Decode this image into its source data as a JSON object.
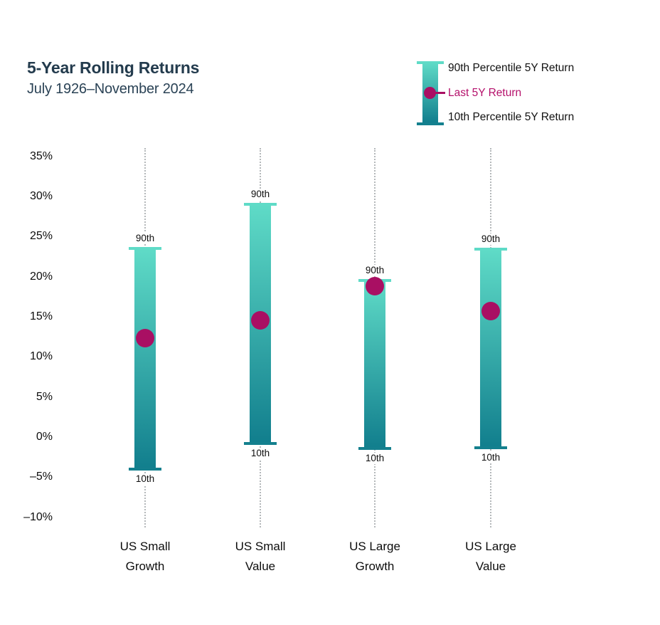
{
  "header": {
    "title": "5-Year Rolling Returns",
    "subtitle": "July 1926–November 2024"
  },
  "legend": {
    "p90_label": "90th Percentile 5Y Return",
    "last_label": "Last 5Y Return",
    "p10_label": "10th Percentile 5Y Return"
  },
  "colors": {
    "bar_gradient_top": "#5fdbc7",
    "bar_gradient_bottom": "#117e8d",
    "bottom_cap": "#14808e",
    "last_dot": "#a90f63",
    "last_legend_text": "#b5106b",
    "title_text": "#233b4d",
    "guide_dotted_line": "#b4b8ba"
  },
  "chart_data": {
    "type": "range-bar",
    "title": "5-Year Rolling Returns",
    "subtitle": "July 1926–November 2024",
    "ylim": [
      -10,
      35
    ],
    "y_tick_step": 5,
    "grid": "vertical dotted guide per category",
    "legend_position": "top-right",
    "marker": "Last 5Y Return shown as magenta dot on each bar",
    "categories": [
      "US Small Growth",
      "US Small Value",
      "US Large Growth",
      "US Large Value"
    ],
    "categories_lines": [
      [
        "US Small",
        "Growth"
      ],
      [
        "US Small",
        "Value"
      ],
      [
        "US Large",
        "Growth"
      ],
      [
        "US Large",
        "Value"
      ]
    ],
    "series": [
      {
        "name": "90th Percentile 5Y Return",
        "values": [
          23.5,
          29.0,
          19.5,
          23.4
        ]
      },
      {
        "name": "Last 5Y Return",
        "values": [
          12.3,
          14.6,
          18.8,
          15.7
        ]
      },
      {
        "name": "10th Percentile 5Y Return",
        "values": [
          -4.0,
          -0.8,
          -1.4,
          -1.3
        ]
      }
    ],
    "bar_annotations": {
      "top": "90th",
      "bottom": "10th"
    },
    "y_ticks": [
      {
        "label": "35%",
        "value": 35
      },
      {
        "label": "30%",
        "value": 30
      },
      {
        "label": "25%",
        "value": 25
      },
      {
        "label": "20%",
        "value": 20
      },
      {
        "label": "15%",
        "value": 15
      },
      {
        "label": "10%",
        "value": 10
      },
      {
        "label": "5%",
        "value": 5
      },
      {
        "label": "0%",
        "value": 0
      },
      {
        "label": "–5%",
        "value": -5
      },
      {
        "label": "–10%",
        "value": -10
      }
    ]
  }
}
